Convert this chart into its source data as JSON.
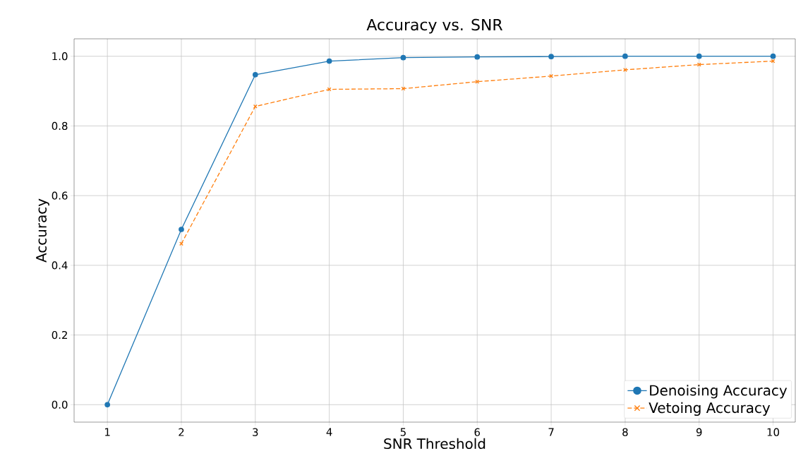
{
  "chart_data": {
    "type": "line",
    "title": "Accuracy vs. SNR",
    "xlabel": "SNR Threshold",
    "ylabel": "Accuracy",
    "x": [
      1,
      2,
      3,
      4,
      5,
      6,
      7,
      8,
      9,
      10
    ],
    "series": [
      {
        "name": "Denoising Accuracy",
        "color": "#1f77b4",
        "marker": "circle",
        "line_style": "solid",
        "values": [
          0.0,
          0.503,
          0.947,
          0.986,
          0.996,
          0.998,
          0.999,
          1.0,
          1.0,
          1.0
        ]
      },
      {
        "name": "Vetoing Accuracy",
        "color": "#ff7f0e",
        "marker": "cross",
        "line_style": "dashed",
        "values": [
          null,
          0.462,
          0.856,
          0.905,
          0.907,
          0.927,
          0.943,
          0.961,
          0.976,
          0.986
        ]
      }
    ],
    "xlim": [
      0.55,
      10.3
    ],
    "ylim": [
      -0.05,
      1.05
    ],
    "xticks": [
      1,
      2,
      3,
      4,
      5,
      6,
      7,
      8,
      9,
      10
    ],
    "yticks": [
      {
        "value": 0,
        "label": "0.0"
      },
      {
        "value": 0.2,
        "label": "0.2"
      },
      {
        "value": 0.4,
        "label": "0.4"
      },
      {
        "value": 0.6,
        "label": "0.6"
      },
      {
        "value": 0.8,
        "label": "0.8"
      },
      {
        "value": 1.0,
        "label": "1.0"
      }
    ],
    "grid": true,
    "legend": "bottom right"
  }
}
